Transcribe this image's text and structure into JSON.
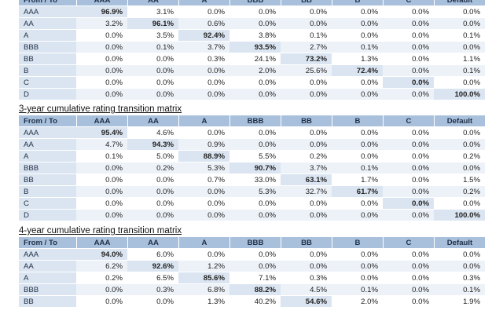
{
  "columns": [
    "From / To",
    "AAA",
    "AA",
    "A",
    "BBB",
    "BB",
    "B",
    "C",
    "Default"
  ],
  "matrices": [
    {
      "title": "",
      "rows": [
        {
          "label": "AAA",
          "values": [
            "96.9%",
            "3.1%",
            "0.0%",
            "0.0%",
            "0.0%",
            "0.0%",
            "0.0%",
            "0.0%"
          ]
        },
        {
          "label": "AA",
          "values": [
            "3.2%",
            "96.1%",
            "0.6%",
            "0.0%",
            "0.0%",
            "0.0%",
            "0.0%",
            "0.0%"
          ]
        },
        {
          "label": "A",
          "values": [
            "0.0%",
            "3.5%",
            "92.4%",
            "3.8%",
            "0.1%",
            "0.0%",
            "0.0%",
            "0.1%"
          ]
        },
        {
          "label": "BBB",
          "values": [
            "0.0%",
            "0.1%",
            "3.7%",
            "93.5%",
            "2.7%",
            "0.1%",
            "0.0%",
            "0.0%"
          ]
        },
        {
          "label": "BB",
          "values": [
            "0.0%",
            "0.0%",
            "0.3%",
            "24.1%",
            "73.2%",
            "1.3%",
            "0.0%",
            "1.1%"
          ]
        },
        {
          "label": "B",
          "values": [
            "0.0%",
            "0.0%",
            "0.0%",
            "2.0%",
            "25.6%",
            "72.4%",
            "0.0%",
            "0.1%"
          ]
        },
        {
          "label": "C",
          "values": [
            "0.0%",
            "0.0%",
            "0.0%",
            "0.0%",
            "0.0%",
            "0.0%",
            "0.0%",
            "0.0%"
          ]
        },
        {
          "label": "D",
          "values": [
            "0.0%",
            "0.0%",
            "0.0%",
            "0.0%",
            "0.0%",
            "0.0%",
            "0.0%",
            "100.0%"
          ]
        }
      ]
    },
    {
      "title": "3-year cumulative rating transition matrix",
      "rows": [
        {
          "label": "AAA",
          "values": [
            "95.4%",
            "4.6%",
            "0.0%",
            "0.0%",
            "0.0%",
            "0.0%",
            "0.0%",
            "0.0%"
          ]
        },
        {
          "label": "AA",
          "values": [
            "4.7%",
            "94.3%",
            "0.9%",
            "0.0%",
            "0.0%",
            "0.0%",
            "0.0%",
            "0.0%"
          ]
        },
        {
          "label": "A",
          "values": [
            "0.1%",
            "5.0%",
            "88.9%",
            "5.5%",
            "0.2%",
            "0.0%",
            "0.0%",
            "0.2%"
          ]
        },
        {
          "label": "BBB",
          "values": [
            "0.0%",
            "0.2%",
            "5.3%",
            "90.7%",
            "3.7%",
            "0.1%",
            "0.0%",
            "0.0%"
          ]
        },
        {
          "label": "BB",
          "values": [
            "0.0%",
            "0.0%",
            "0.7%",
            "33.0%",
            "63.1%",
            "1.7%",
            "0.0%",
            "1.5%"
          ]
        },
        {
          "label": "B",
          "values": [
            "0.0%",
            "0.0%",
            "0.0%",
            "5.3%",
            "32.7%",
            "61.7%",
            "0.0%",
            "0.2%"
          ]
        },
        {
          "label": "C",
          "values": [
            "0.0%",
            "0.0%",
            "0.0%",
            "0.0%",
            "0.0%",
            "0.0%",
            "0.0%",
            "0.0%"
          ]
        },
        {
          "label": "D",
          "values": [
            "0.0%",
            "0.0%",
            "0.0%",
            "0.0%",
            "0.0%",
            "0.0%",
            "0.0%",
            "100.0%"
          ]
        }
      ]
    },
    {
      "title": "4-year cumulative rating transition matrix",
      "rows": [
        {
          "label": "AAA",
          "values": [
            "94.0%",
            "6.0%",
            "0.0%",
            "0.0%",
            "0.0%",
            "0.0%",
            "0.0%",
            "0.0%"
          ]
        },
        {
          "label": "AA",
          "values": [
            "6.2%",
            "92.6%",
            "1.2%",
            "0.0%",
            "0.0%",
            "0.0%",
            "0.0%",
            "0.0%"
          ]
        },
        {
          "label": "A",
          "values": [
            "0.2%",
            "6.5%",
            "85.6%",
            "7.1%",
            "0.3%",
            "0.0%",
            "0.0%",
            "0.3%"
          ]
        },
        {
          "label": "BBB",
          "values": [
            "0.0%",
            "0.3%",
            "6.8%",
            "88.2%",
            "4.5%",
            "0.1%",
            "0.0%",
            "0.1%"
          ]
        },
        {
          "label": "BB",
          "values": [
            "0.0%",
            "0.0%",
            "1.3%",
            "40.2%",
            "54.6%",
            "2.0%",
            "0.0%",
            "1.9%"
          ]
        }
      ]
    }
  ]
}
